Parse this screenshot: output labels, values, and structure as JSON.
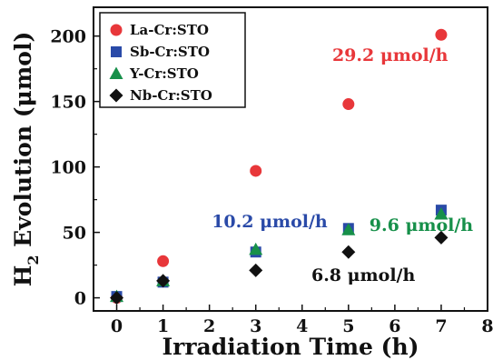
{
  "chart_data": {
    "type": "scatter",
    "xlabel": "Irradiation Time (h)",
    "ylabel": {
      "prefix": "H",
      "subscript": "2",
      "suffix": " Evolution (μmol)"
    },
    "xlim": [
      -0.5,
      8
    ],
    "ylim": [
      -10,
      222
    ],
    "xticks": [
      "0",
      "1",
      "2",
      "3",
      "4",
      "5",
      "6",
      "7",
      "8"
    ],
    "yticks": [
      "0",
      "50",
      "100",
      "150",
      "200"
    ],
    "series": [
      {
        "name": "La-Cr:STO",
        "marker": "circle",
        "color": "#e8373a",
        "x": [
          0,
          1,
          3,
          5,
          7
        ],
        "y": [
          0,
          28,
          97,
          148,
          201
        ]
      },
      {
        "name": "Sb-Cr:STO",
        "marker": "square",
        "color": "#2a4aa8",
        "x": [
          0,
          1,
          3,
          5,
          7
        ],
        "y": [
          1,
          12,
          35,
          53,
          67
        ]
      },
      {
        "name": "Y-Cr:STO",
        "marker": "triangle",
        "color": "#17904a",
        "x": [
          0,
          1,
          3,
          5,
          7
        ],
        "y": [
          1,
          13,
          37,
          52,
          64
        ]
      },
      {
        "name": "Nb-Cr:STO",
        "marker": "diamond",
        "color": "#111111",
        "x": [
          0,
          1,
          3,
          5,
          7
        ],
        "y": [
          0,
          13,
          21,
          35,
          46
        ]
      }
    ],
    "annotations": [
      {
        "text": "29.2 μmol/h",
        "color": "#e8373a",
        "x": 4.65,
        "y": 181
      },
      {
        "text": "10.2 μmol/h",
        "color": "#2a4aa8",
        "x": 2.05,
        "y": 54
      },
      {
        "text": "9.6 μmol/h",
        "color": "#17904a",
        "x": 5.45,
        "y": 51
      },
      {
        "text": "6.8 μmol/h",
        "color": "#111111",
        "x": 4.2,
        "y": 13
      }
    ],
    "legend_position": "top-left",
    "grid": false
  }
}
